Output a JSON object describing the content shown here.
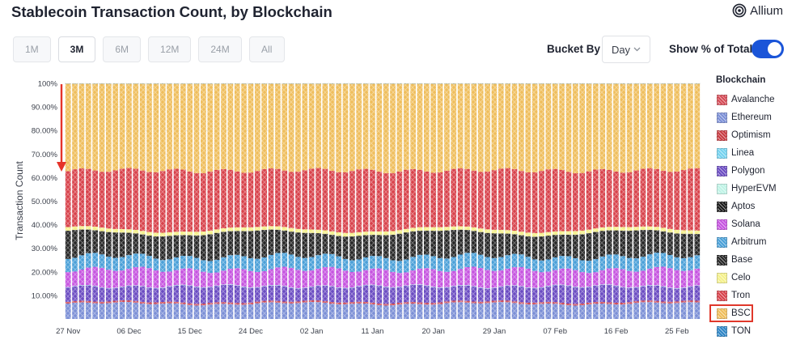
{
  "header": {
    "title": "Stablecoin Transaction Count, by Blockchain",
    "brand": "Allium"
  },
  "controls": {
    "ranges": [
      "1M",
      "3M",
      "6M",
      "12M",
      "24M",
      "All"
    ],
    "active_range": "3M",
    "bucket_label": "Bucket By",
    "bucket_value": "Day",
    "percent_label": "Show % of Total",
    "percent_enabled": true
  },
  "legend": {
    "title": "Blockchain",
    "highlighted": "BSC",
    "items": [
      {
        "name": "Avalanche",
        "color": "#d44a55"
      },
      {
        "name": "Ethereum",
        "color": "#7b8fd6"
      },
      {
        "name": "Optimism",
        "color": "#c83c42"
      },
      {
        "name": "Linea",
        "color": "#74d2ef"
      },
      {
        "name": "Polygon",
        "color": "#6b4cc2"
      },
      {
        "name": "HyperEVM",
        "color": "#bff3e6"
      },
      {
        "name": "Aptos",
        "color": "#1a1a1a"
      },
      {
        "name": "Solana",
        "color": "#c654e0"
      },
      {
        "name": "Arbitrum",
        "color": "#4aa0d8"
      },
      {
        "name": "Base",
        "color": "#262626"
      },
      {
        "name": "Celo",
        "color": "#f4f08a"
      },
      {
        "name": "Tron",
        "color": "#d8424b"
      },
      {
        "name": "BSC",
        "color": "#efbe5c"
      },
      {
        "name": "TON",
        "color": "#2f86c6"
      }
    ]
  },
  "chart_data": {
    "type": "bar",
    "stacked": true,
    "percent_of_total": true,
    "ylabel": "Transaction Count",
    "ylim": [
      0,
      100
    ],
    "y_ticks": [
      "10.00%",
      "20.00%",
      "30.00%",
      "40.00%",
      "50.00%",
      "60.00%",
      "70.00%",
      "80.00%",
      "90.00%",
      "100%"
    ],
    "x_tick_labels": [
      "27 Nov",
      "06 Dec",
      "15 Dec",
      "24 Dec",
      "02 Jan",
      "11 Jan",
      "20 Jan",
      "29 Jan",
      "07 Feb",
      "16 Feb",
      "25 Feb"
    ],
    "bar_count": 94,
    "series_order": [
      "Ethereum",
      "Avalanche",
      "Optimism",
      "Polygon",
      "Linea",
      "HyperEVM",
      "Solana",
      "Arbitrum",
      "Base",
      "Aptos",
      "Celo",
      "Tron",
      "BSC",
      "TON"
    ],
    "series_avg_pct": [
      {
        "name": "Ethereum",
        "value": 6.5
      },
      {
        "name": "Avalanche",
        "value": 0.4
      },
      {
        "name": "Optimism",
        "value": 0.3
      },
      {
        "name": "Polygon",
        "value": 6.5
      },
      {
        "name": "Linea",
        "value": 0.1
      },
      {
        "name": "HyperEVM",
        "value": 0.1
      },
      {
        "name": "Solana",
        "value": 7.0
      },
      {
        "name": "Arbitrum",
        "value": 5.5
      },
      {
        "name": "Base",
        "value": 10.0
      },
      {
        "name": "Aptos",
        "value": 0.1
      },
      {
        "name": "Celo",
        "value": 1.5
      },
      {
        "name": "Tron",
        "value": 25.0
      },
      {
        "name": "BSC",
        "value": 36.9
      },
      {
        "name": "TON",
        "value": 0.1
      }
    ],
    "annotation": "red downward arrow on the left edge from 100% to about 63%"
  }
}
